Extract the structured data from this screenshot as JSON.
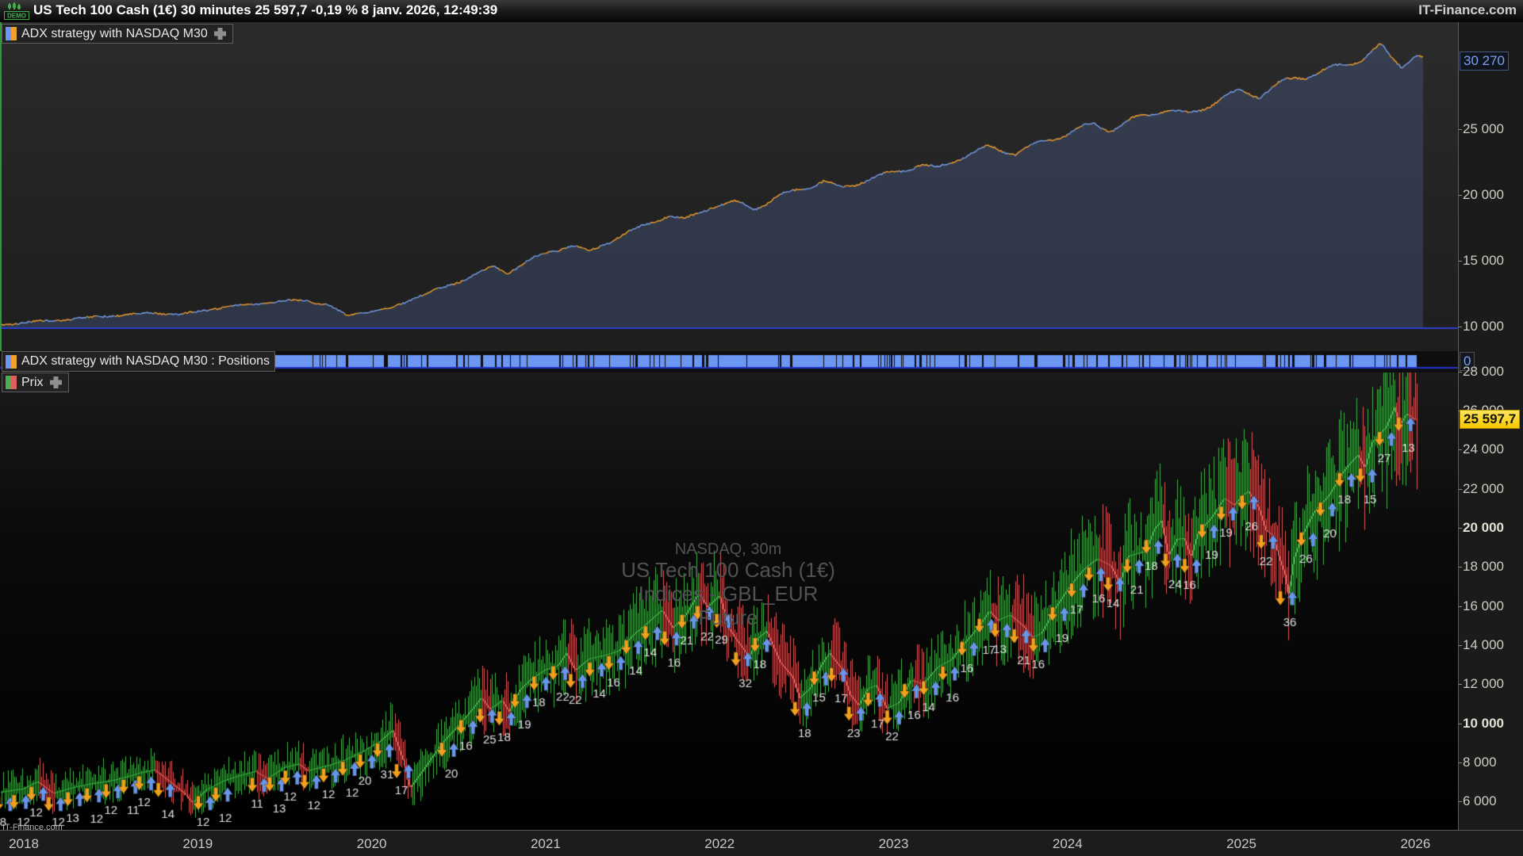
{
  "title_bar": {
    "demo_label": "DEMO",
    "full_text": "US Tech 100 Cash (1€) 30 minutes 25 597,7 -0,19 % 8 janv. 2026, 12:49:39",
    "brand": "IT-Finance.com"
  },
  "equity_panel": {
    "label": "ADX strategy with NASDAQ M30",
    "last_value_badge": "30 270",
    "axis_labels": [
      {
        "text": "25 000",
        "value": 25000,
        "bold": false
      },
      {
        "text": "20 000",
        "value": 20000,
        "bold": false
      },
      {
        "text": "15 000",
        "value": 15000,
        "bold": false
      },
      {
        "text": "10 000",
        "value": 10000,
        "bold": false
      }
    ]
  },
  "positions_panel": {
    "label": "ADX strategy with NASDAQ M30 : Positions",
    "axis_badge": "0"
  },
  "price_panel": {
    "label": "Prix",
    "price_badge": "25 597,7",
    "watermark_lines": [
      "NASDAQ, 30m",
      "US Tech 100 Cash (1€)",
      "Indices - GBL_EUR",
      "Future"
    ],
    "credit": "IT-Finance.com",
    "axis_labels": [
      {
        "text": "28 000",
        "value": 28000,
        "bold": false
      },
      {
        "text": "26 000",
        "value": 26000,
        "bold": false
      },
      {
        "text": "24 000",
        "value": 24000,
        "bold": false
      },
      {
        "text": "22 000",
        "value": 22000,
        "bold": false
      },
      {
        "text": "20 000",
        "value": 20000,
        "bold": true
      },
      {
        "text": "18 000",
        "value": 18000,
        "bold": false
      },
      {
        "text": "16 000",
        "value": 16000,
        "bold": false
      },
      {
        "text": "14 000",
        "value": 14000,
        "bold": false
      },
      {
        "text": "12 000",
        "value": 12000,
        "bold": false
      },
      {
        "text": "10 000",
        "value": 10000,
        "bold": true
      },
      {
        "text": "8 000",
        "value": 8000,
        "bold": false
      },
      {
        "text": "6 000",
        "value": 6000,
        "bold": false
      }
    ]
  },
  "x_axis": {
    "years": [
      2018,
      2019,
      2020,
      2021,
      2022,
      2023,
      2024,
      2025,
      2026
    ]
  },
  "colors": {
    "equity_line_a": "#f0a030",
    "equity_line_b": "#7aa0e8",
    "equity_fill": "rgba(90,120,190,0.26)",
    "equity_baseline": "#2c3fd0",
    "positions_bar": "#6b96f2",
    "positions_line": "#2433c8",
    "candle_up": "#46b14c",
    "candle_down": "#e05858",
    "arrow_up": "#6a95e8",
    "arrow_down": "#f2a01e",
    "marker_text": "#e0e0e0",
    "price_badge_bg": "#ffd718"
  },
  "chart_data": [
    {
      "type": "area",
      "name": "equity-curve",
      "title": "ADX strategy with NASDAQ M30",
      "x_range": [
        2017.86,
        2026.05
      ],
      "ylim": [
        9000,
        33000
      ],
      "baseline_value": 10000,
      "last_value": 30270,
      "grid": false,
      "legend_position": "top-left-label",
      "points": [
        [
          2017.87,
          10250
        ],
        [
          2018.2,
          10500
        ],
        [
          2018.5,
          10900
        ],
        [
          2018.75,
          11150
        ],
        [
          2018.9,
          10950
        ],
        [
          2019.1,
          11400
        ],
        [
          2019.4,
          11900
        ],
        [
          2019.6,
          12150
        ],
        [
          2019.75,
          11700
        ],
        [
          2019.85,
          10900
        ],
        [
          2019.95,
          11100
        ],
        [
          2020.1,
          11350
        ],
        [
          2020.25,
          12300
        ],
        [
          2020.4,
          13000
        ],
        [
          2020.55,
          13800
        ],
        [
          2020.7,
          14600
        ],
        [
          2020.78,
          14100
        ],
        [
          2020.9,
          15000
        ],
        [
          2021.0,
          15600
        ],
        [
          2021.15,
          16300
        ],
        [
          2021.25,
          15800
        ],
        [
          2021.4,
          16800
        ],
        [
          2021.55,
          17600
        ],
        [
          2021.7,
          18400
        ],
        [
          2021.8,
          18100
        ],
        [
          2021.95,
          19200
        ],
        [
          2022.1,
          19600
        ],
        [
          2022.2,
          19100
        ],
        [
          2022.35,
          20000
        ],
        [
          2022.5,
          20600
        ],
        [
          2022.6,
          21000
        ],
        [
          2022.7,
          20500
        ],
        [
          2022.85,
          21300
        ],
        [
          2023.0,
          21900
        ],
        [
          2023.15,
          22400
        ],
        [
          2023.25,
          22000
        ],
        [
          2023.4,
          22900
        ],
        [
          2023.55,
          23600
        ],
        [
          2023.7,
          23300
        ],
        [
          2023.85,
          24200
        ],
        [
          2024.0,
          24800
        ],
        [
          2024.15,
          25400
        ],
        [
          2024.25,
          24900
        ],
        [
          2024.4,
          25800
        ],
        [
          2024.55,
          26600
        ],
        [
          2024.7,
          26300
        ],
        [
          2024.85,
          27300
        ],
        [
          2025.0,
          27900
        ],
        [
          2025.1,
          27500
        ],
        [
          2025.2,
          28200
        ],
        [
          2025.3,
          28800
        ],
        [
          2025.45,
          29500
        ],
        [
          2025.6,
          30100
        ],
        [
          2025.7,
          30700
        ],
        [
          2025.8,
          31400
        ],
        [
          2025.85,
          30500
        ],
        [
          2025.92,
          29800
        ],
        [
          2026.0,
          30600
        ],
        [
          2026.05,
          30270
        ]
      ]
    },
    {
      "type": "bar",
      "name": "positions-strip",
      "title": "ADX strategy with NASDAQ M30 : Positions",
      "x_range": [
        2017.86,
        2026.02
      ],
      "value_when_in_position": 1,
      "baseline_label": "0",
      "note": "near-continuous long/flat position ribbon with brief flat gaps"
    },
    {
      "type": "candlestick-line",
      "name": "price",
      "title": "US Tech 100 Cash (1€), 30m",
      "x_range": [
        2017.86,
        2026.05
      ],
      "ylim": [
        5000,
        28500
      ],
      "last_price": 25597.7,
      "grid": false,
      "points": [
        [
          2017.87,
          6500
        ],
        [
          2018.0,
          6650
        ],
        [
          2018.08,
          7050
        ],
        [
          2018.17,
          6500
        ],
        [
          2018.25,
          6700
        ],
        [
          2018.33,
          6850
        ],
        [
          2018.42,
          7000
        ],
        [
          2018.5,
          7150
        ],
        [
          2018.58,
          7350
        ],
        [
          2018.67,
          7550
        ],
        [
          2018.75,
          7650
        ],
        [
          2018.83,
          7100
        ],
        [
          2018.92,
          6500
        ],
        [
          2018.97,
          6000
        ],
        [
          2019.05,
          6650
        ],
        [
          2019.15,
          7050
        ],
        [
          2019.25,
          7350
        ],
        [
          2019.33,
          7600
        ],
        [
          2019.4,
          7250
        ],
        [
          2019.5,
          7800
        ],
        [
          2019.58,
          7950
        ],
        [
          2019.63,
          7600
        ],
        [
          2019.75,
          7950
        ],
        [
          2019.85,
          8250
        ],
        [
          2019.95,
          8600
        ],
        [
          2020.05,
          9100
        ],
        [
          2020.12,
          9700
        ],
        [
          2020.18,
          8200
        ],
        [
          2020.22,
          6750
        ],
        [
          2020.3,
          7700
        ],
        [
          2020.4,
          8900
        ],
        [
          2020.5,
          9900
        ],
        [
          2020.58,
          10800
        ],
        [
          2020.63,
          11400
        ],
        [
          2020.68,
          10800
        ],
        [
          2020.75,
          11200
        ],
        [
          2020.79,
          10600
        ],
        [
          2020.85,
          11700
        ],
        [
          2020.92,
          12350
        ],
        [
          2021.0,
          12900
        ],
        [
          2021.07,
          13100
        ],
        [
          2021.12,
          13700
        ],
        [
          2021.17,
          12750
        ],
        [
          2021.25,
          13300
        ],
        [
          2021.33,
          13500
        ],
        [
          2021.42,
          13800
        ],
        [
          2021.5,
          14550
        ],
        [
          2021.58,
          15050
        ],
        [
          2021.67,
          15700
        ],
        [
          2021.73,
          14850
        ],
        [
          2021.8,
          15550
        ],
        [
          2021.88,
          16750
        ],
        [
          2021.93,
          16000
        ],
        [
          2022.0,
          16550
        ],
        [
          2022.05,
          14900
        ],
        [
          2022.1,
          14250
        ],
        [
          2022.17,
          13500
        ],
        [
          2022.22,
          14500
        ],
        [
          2022.27,
          14900
        ],
        [
          2022.35,
          13200
        ],
        [
          2022.42,
          12400
        ],
        [
          2022.46,
          11300
        ],
        [
          2022.52,
          11800
        ],
        [
          2022.58,
          12950
        ],
        [
          2022.63,
          13700
        ],
        [
          2022.7,
          12900
        ],
        [
          2022.75,
          11500
        ],
        [
          2022.8,
          10900
        ],
        [
          2022.85,
          11700
        ],
        [
          2022.9,
          11900
        ],
        [
          2022.96,
          10750
        ],
        [
          2023.03,
          11100
        ],
        [
          2023.1,
          12300
        ],
        [
          2023.17,
          12050
        ],
        [
          2023.25,
          12850
        ],
        [
          2023.33,
          13250
        ],
        [
          2023.42,
          14350
        ],
        [
          2023.5,
          15250
        ],
        [
          2023.55,
          15900
        ],
        [
          2023.6,
          15350
        ],
        [
          2023.67,
          15550
        ],
        [
          2023.75,
          14950
        ],
        [
          2023.8,
          14450
        ],
        [
          2023.85,
          14700
        ],
        [
          2023.93,
          16000
        ],
        [
          2024.0,
          16850
        ],
        [
          2024.08,
          17650
        ],
        [
          2024.17,
          18350
        ],
        [
          2024.25,
          18100
        ],
        [
          2024.3,
          17250
        ],
        [
          2024.35,
          18650
        ],
        [
          2024.45,
          18800
        ],
        [
          2024.5,
          19900
        ],
        [
          2024.54,
          20350
        ],
        [
          2024.58,
          18600
        ],
        [
          2024.63,
          19550
        ],
        [
          2024.67,
          19650
        ],
        [
          2024.71,
          18700
        ],
        [
          2024.75,
          19950
        ],
        [
          2024.83,
          20650
        ],
        [
          2024.9,
          21500
        ],
        [
          2024.96,
          21150
        ],
        [
          2025.0,
          21650
        ],
        [
          2025.04,
          21950
        ],
        [
          2025.1,
          21150
        ],
        [
          2025.14,
          20000
        ],
        [
          2025.18,
          19700
        ],
        [
          2025.22,
          18400
        ],
        [
          2025.25,
          17600
        ],
        [
          2025.27,
          16500
        ],
        [
          2025.3,
          18300
        ],
        [
          2025.35,
          19500
        ],
        [
          2025.42,
          20800
        ],
        [
          2025.5,
          21700
        ],
        [
          2025.58,
          22900
        ],
        [
          2025.62,
          23300
        ],
        [
          2025.67,
          23700
        ],
        [
          2025.71,
          23000
        ],
        [
          2025.75,
          24300
        ],
        [
          2025.83,
          25200
        ],
        [
          2025.88,
          26350
        ],
        [
          2025.91,
          25500
        ],
        [
          2025.95,
          26100
        ],
        [
          2026.0,
          25750
        ],
        [
          2026.04,
          25597.7
        ]
      ],
      "trade_markers": [
        [
          2017.89,
          8
        ],
        [
          2017.98,
          12
        ],
        [
          2018.08,
          12
        ],
        [
          2018.18,
          12
        ],
        [
          2018.29,
          13
        ],
        [
          2018.4,
          12
        ],
        [
          2018.51,
          12
        ],
        [
          2018.61,
          11
        ],
        [
          2018.7,
          12
        ],
        [
          2018.81,
          14
        ],
        [
          2019.04,
          12
        ],
        [
          2019.14,
          12
        ],
        [
          2019.35,
          11
        ],
        [
          2019.45,
          13
        ],
        [
          2019.54,
          12
        ],
        [
          2019.65,
          12
        ],
        [
          2019.76,
          12
        ],
        [
          2019.87,
          12
        ],
        [
          2019.97,
          20
        ],
        [
          2020.07,
          31
        ],
        [
          2020.18,
          17
        ],
        [
          2020.44,
          20
        ],
        [
          2020.55,
          16
        ],
        [
          2020.66,
          25
        ],
        [
          2020.77,
          18
        ],
        [
          2020.86,
          19
        ],
        [
          2020.97,
          18
        ],
        [
          2021.08,
          22
        ],
        [
          2021.18,
          22
        ],
        [
          2021.29,
          14
        ],
        [
          2021.4,
          16
        ],
        [
          2021.5,
          14
        ],
        [
          2021.61,
          14
        ],
        [
          2021.72,
          16
        ],
        [
          2021.82,
          21
        ],
        [
          2021.91,
          22
        ],
        [
          2022.02,
          29
        ],
        [
          2022.13,
          32
        ],
        [
          2022.24,
          18
        ],
        [
          2022.47,
          18
        ],
        [
          2022.58,
          15
        ],
        [
          2022.68,
          17
        ],
        [
          2022.78,
          23
        ],
        [
          2022.89,
          17
        ],
        [
          2023.0,
          22
        ],
        [
          2023.1,
          16
        ],
        [
          2023.21,
          14
        ],
        [
          2023.32,
          16
        ],
        [
          2023.43,
          16
        ],
        [
          2023.53,
          17
        ],
        [
          2023.62,
          13
        ],
        [
          2023.73,
          21
        ],
        [
          2023.84,
          16
        ],
        [
          2023.95,
          19
        ],
        [
          2024.06,
          17
        ],
        [
          2024.16,
          16
        ],
        [
          2024.27,
          14
        ],
        [
          2024.38,
          21
        ],
        [
          2024.49,
          18
        ],
        [
          2024.6,
          24
        ],
        [
          2024.71,
          16
        ],
        [
          2024.81,
          19
        ],
        [
          2024.92,
          19
        ],
        [
          2025.04,
          26
        ],
        [
          2025.15,
          22
        ],
        [
          2025.26,
          36
        ],
        [
          2025.38,
          26
        ],
        [
          2025.49,
          20
        ],
        [
          2025.6,
          18
        ],
        [
          2025.72,
          15
        ],
        [
          2025.83,
          27
        ],
        [
          2025.94,
          13
        ]
      ]
    }
  ]
}
